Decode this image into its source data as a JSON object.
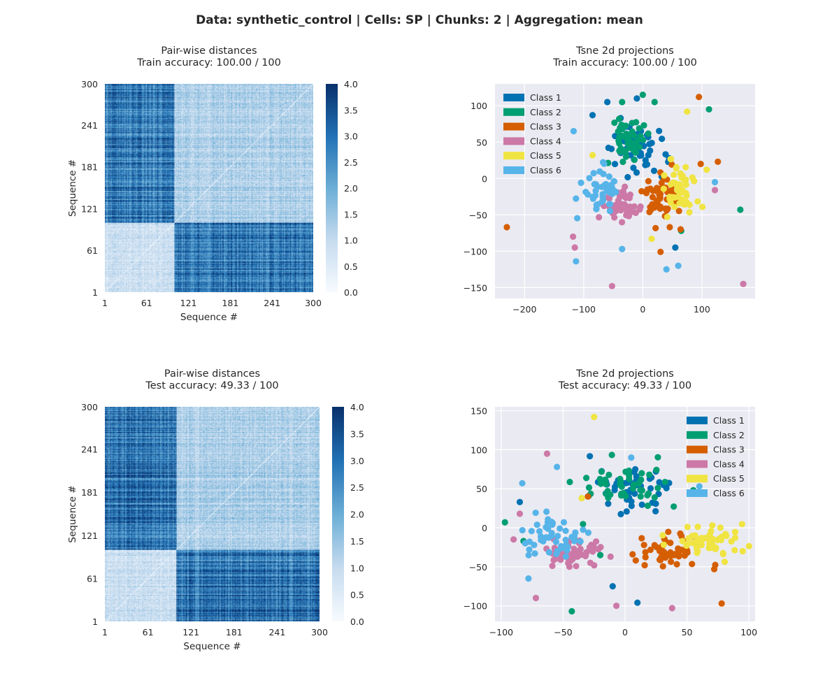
{
  "figure": {
    "suptitle": "Data: synthetic_control | Cells: SP | Chunks: 2 | Aggregation: mean"
  },
  "chart_data": [
    {
      "id": "heatmap_train",
      "type": "heatmap",
      "title": "Pair-wise distances",
      "subtitle": "Train accuracy: 100.00 / 100",
      "xlabel": "Sequence #",
      "ylabel": "Sequence #",
      "tick_labels": [
        "1",
        "61",
        "121",
        "181",
        "241",
        "300"
      ],
      "tick_values": [
        1,
        61,
        121,
        181,
        241,
        300
      ],
      "n": 300,
      "block_boundary": 100,
      "value_range": [
        0,
        4
      ],
      "colorbar_ticks": [
        "0.0",
        "0.5",
        "1.0",
        "1.5",
        "2.0",
        "2.5",
        "3.0",
        "3.5",
        "4.0"
      ],
      "colormap": [
        "#f7fbff",
        "#c6dbef",
        "#6baed6",
        "#2171b5",
        "#08306b"
      ]
    },
    {
      "id": "tsne_train",
      "type": "scatter",
      "title": "Tsne 2d projections",
      "subtitle": "Train accuracy: 100.00 / 100",
      "xlim": [
        -250,
        190
      ],
      "ylim": [
        -165,
        130
      ],
      "xticks": [
        -200,
        -100,
        0,
        100
      ],
      "yticks": [
        -150,
        -100,
        -50,
        0,
        50,
        100
      ],
      "legend_position": "top-left",
      "clusters": [
        {
          "name": "Class 1",
          "color": "#0072B2",
          "center": [
            -15,
            40
          ],
          "spread": [
            45,
            35
          ],
          "count": 50,
          "outliers": [
            [
              -60,
              105
            ],
            [
              -85,
              87
            ],
            [
              55,
              -95
            ],
            [
              -10,
              110
            ]
          ]
        },
        {
          "name": "Class 2",
          "color": "#009E73",
          "center": [
            -20,
            55
          ],
          "spread": [
            25,
            25
          ],
          "count": 50,
          "outliers": [
            [
              165,
              -43
            ],
            [
              112,
              95
            ],
            [
              -35,
              105
            ],
            [
              20,
              105
            ],
            [
              0,
              115
            ],
            [
              65,
              -72
            ]
          ]
        },
        {
          "name": "Class 3",
          "color": "#D55E00",
          "center": [
            30,
            -30
          ],
          "spread": [
            25,
            25
          ],
          "count": 50,
          "outliers": [
            [
              -230,
              -67
            ],
            [
              95,
              112
            ],
            [
              127,
              23
            ],
            [
              30,
              -101
            ],
            [
              98,
              20
            ],
            [
              64,
              -70
            ]
          ]
        },
        {
          "name": "Class 4",
          "color": "#CC79A7",
          "center": [
            -40,
            -40
          ],
          "spread": [
            25,
            22
          ],
          "count": 50,
          "outliers": [
            [
              170,
              -145
            ],
            [
              -52,
              -148
            ],
            [
              -118,
              -80
            ],
            [
              -115,
              -95
            ],
            [
              122,
              -16
            ]
          ]
        },
        {
          "name": "Class 5",
          "color": "#F0E442",
          "center": [
            60,
            -10
          ],
          "spread": [
            20,
            30
          ],
          "count": 50,
          "outliers": [
            [
              -85,
              32
            ],
            [
              108,
              12
            ],
            [
              75,
              92
            ],
            [
              15,
              -83
            ]
          ]
        },
        {
          "name": "Class 6",
          "color": "#56B4E9",
          "center": [
            -70,
            -20
          ],
          "spread": [
            25,
            30
          ],
          "count": 50,
          "outliers": [
            [
              -117,
              65
            ],
            [
              -113,
              -114
            ],
            [
              40,
              -125
            ],
            [
              60,
              -120
            ],
            [
              122,
              -5
            ],
            [
              -35,
              -97
            ]
          ]
        }
      ]
    },
    {
      "id": "heatmap_test",
      "type": "heatmap",
      "title": "Pair-wise distances",
      "subtitle": "Test accuracy: 49.33 / 100",
      "xlabel": "Sequence #",
      "ylabel": "Sequence #",
      "tick_labels": [
        "1",
        "61",
        "121",
        "181",
        "241",
        "300"
      ],
      "tick_values": [
        1,
        61,
        121,
        181,
        241,
        300
      ],
      "n": 300,
      "block_boundary": 100,
      "value_range": [
        0,
        4
      ],
      "colorbar_ticks": [
        "0.0",
        "0.5",
        "1.0",
        "1.5",
        "2.0",
        "2.5",
        "3.0",
        "3.5",
        "4.0"
      ],
      "colormap": [
        "#f7fbff",
        "#c6dbef",
        "#6baed6",
        "#2171b5",
        "#08306b"
      ]
    },
    {
      "id": "tsne_test",
      "type": "scatter",
      "title": "Tsne 2d projections",
      "subtitle": "Test accuracy: 49.33 / 100",
      "xlim": [
        -105,
        105
      ],
      "ylim": [
        -120,
        155
      ],
      "xticks": [
        -100,
        -50,
        0,
        50,
        100
      ],
      "yticks": [
        -100,
        -50,
        0,
        50,
        100,
        150
      ],
      "legend_position": "top-right",
      "clusters": [
        {
          "name": "Class 1",
          "color": "#0072B2",
          "center": [
            10,
            50
          ],
          "spread": [
            25,
            25
          ],
          "count": 50,
          "outliers": [
            [
              -85,
              33
            ],
            [
              10,
              -96
            ],
            [
              -10,
              -75
            ]
          ]
        },
        {
          "name": "Class 2",
          "color": "#009E73",
          "center": [
            0,
            55
          ],
          "spread": [
            28,
            25
          ],
          "count": 50,
          "outliers": [
            [
              -97,
              7
            ],
            [
              -82,
              -17
            ],
            [
              -43,
              -107
            ],
            [
              -20,
              -35
            ]
          ]
        },
        {
          "name": "Class 3",
          "color": "#D55E00",
          "center": [
            35,
            -30
          ],
          "spread": [
            22,
            20
          ],
          "count": 50,
          "outliers": [
            [
              78,
              -97
            ],
            [
              72,
              -53
            ],
            [
              -30,
              40
            ]
          ]
        },
        {
          "name": "Class 4",
          "color": "#CC79A7",
          "center": [
            -40,
            -30
          ],
          "spread": [
            20,
            18
          ],
          "count": 50,
          "outliers": [
            [
              -63,
              95
            ],
            [
              -90,
              -15
            ],
            [
              -72,
              -90
            ],
            [
              -85,
              18
            ],
            [
              -7,
              -100
            ],
            [
              38,
              -103
            ]
          ]
        },
        {
          "name": "Class 5",
          "color": "#F0E442",
          "center": [
            65,
            -15
          ],
          "spread": [
            20,
            20
          ],
          "count": 50,
          "outliers": [
            [
              -25,
              142
            ],
            [
              95,
              -30
            ],
            [
              -35,
              38
            ]
          ]
        },
        {
          "name": "Class 6",
          "color": "#56B4E9",
          "center": [
            -60,
            -10
          ],
          "spread": [
            22,
            25
          ],
          "count": 50,
          "outliers": [
            [
              -83,
              57
            ],
            [
              -55,
              78
            ],
            [
              -78,
              -65
            ],
            [
              5,
              90
            ],
            [
              60,
              53
            ]
          ]
        }
      ]
    }
  ]
}
